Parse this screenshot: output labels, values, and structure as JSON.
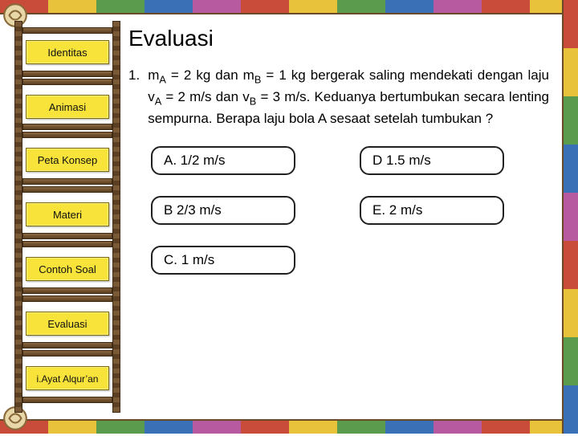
{
  "sidebar": {
    "bg_color": "#f7e33a",
    "items": [
      {
        "label": "Identitas"
      },
      {
        "label": "Animasi"
      },
      {
        "label": "Peta Konsep"
      },
      {
        "label": "Materi"
      },
      {
        "label": "Contoh Soal"
      },
      {
        "label": "Evaluasi"
      },
      {
        "label": "i.Ayat Alqur’an"
      }
    ]
  },
  "page": {
    "title": "Evaluasi",
    "question_number": "1.",
    "question_html": "m<sub>A</sub> = 2 kg dan m<sub>B</sub> = 1 kg bergerak saling mendekati dengan laju v<sub>A</sub> = 2 m/s dan v<sub>B</sub> = 3 m/s. Keduanya bertumbukan secara lenting sempurna. Berapa laju bola A sesaat setelah tumbukan ?",
    "question_plain": "mA = 2 kg dan mB = 1 kg bergerak saling mendekati dengan laju vA = 2 m/s dan vB = 3 m/s. Keduanya bertumbukan secara lenting sempurna. Berapa laju bola A sesaat setelah tumbukan ?"
  },
  "options": {
    "a": "A. 1/2 m/s",
    "b": "B 2/3 m/s",
    "c": "C. 1 m/s",
    "d": "D 1.5 m/s",
    "e": "E. 2 m/s"
  },
  "style": {
    "title_fontsize": 28,
    "body_fontsize": 17,
    "option_border_color": "#202020",
    "option_border_radius": 12,
    "nav_button_bg": "#f7e33a",
    "ladder_wood_color": "#7a5a36",
    "background_color": "#ffffff"
  }
}
